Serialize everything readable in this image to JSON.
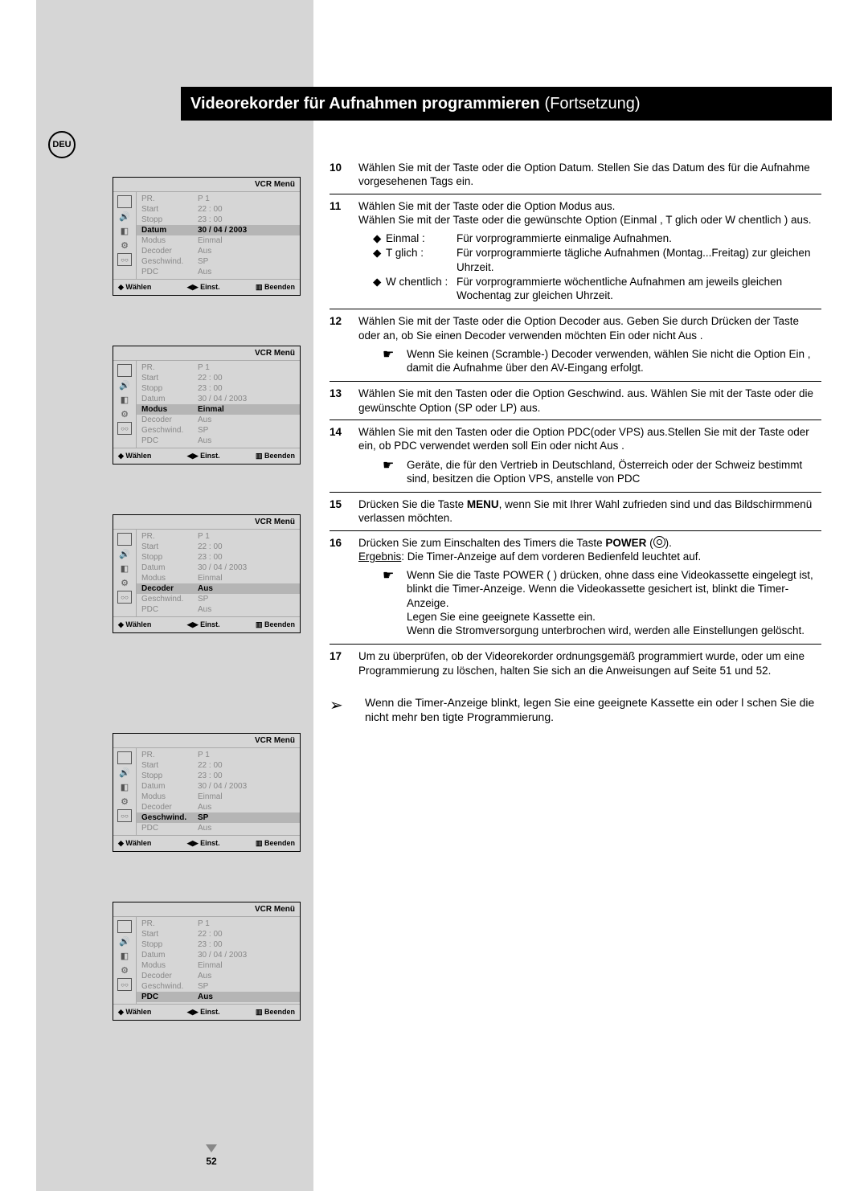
{
  "title_main": "Videorekorder für Aufnahmen programmieren",
  "title_cont": "(Fortsetzung)",
  "lang_badge": "DEU",
  "page_number": "52",
  "menu_header": "VCR Menü",
  "menu_footer": {
    "a": "◆ Wählen",
    "b": "◀▶ Einst.",
    "c": "▥ Beenden"
  },
  "menu_rows": [
    {
      "k": "PR.",
      "v": "P  1"
    },
    {
      "k": "Start",
      "v": "22 : 00"
    },
    {
      "k": "Stopp",
      "v": "23 : 00"
    },
    {
      "k": "Datum",
      "v": "30 / 04 / 2003"
    },
    {
      "k": "Modus",
      "v": "Einmal"
    },
    {
      "k": "Decoder",
      "v": "Aus"
    },
    {
      "k": "Geschwind.",
      "v": "SP"
    },
    {
      "k": "PDC",
      "v": "Aus"
    }
  ],
  "menu_highlights": [
    3,
    4,
    5,
    6,
    7
  ],
  "steps": {
    "s10": "Wählen Sie mit der Taste       oder       die Option Datum. Stellen Sie das Datum des für die Aufnahme vorgesehenen Tags ein.",
    "s11_a": "Wählen Sie mit der Taste       oder       die Option Modus aus.",
    "s11_b": "Wählen Sie mit der Taste       oder       die gewünschte Option (Einmal  , T glich       oder W chentlich      ) aus.",
    "s11_bullet1_lab": "Einmal :",
    "s11_bullet1": "Für vorprogrammierte einmalige Aufnahmen.",
    "s11_bullet2_lab": "T glich :",
    "s11_bullet2": "Für vorprogrammierte tägliche Aufnahmen (Montag...Freitag) zur gleichen Uhrzeit.",
    "s11_bullet3_lab": "W chentlich :",
    "s11_bullet3": "Für vorprogrammierte wöchentliche Aufnahmen am jeweils gleichen Wochentag zur gleichen Uhrzeit.",
    "s12_a": "Wählen Sie mit der Taste       oder       die Option Decoder   aus. Geben Sie durch Drücken der Taste       oder       an, ob Sie einen Decoder verwenden möchten Ein   oder nicht Aus .",
    "s12_note": "Wenn Sie keinen (Scramble-) Decoder verwenden, wählen Sie nicht die Option Ein , damit die Aufnahme über den AV-Eingang erfolgt.",
    "s13": "Wählen Sie mit den Tasten       oder       die Option Geschwind.   aus. Wählen Sie mit der Taste       oder       die gewünschte Option (SP oder LP) aus.",
    "s14_a": "Wählen Sie mit den Tasten       oder       die Option PDC(oder VPS) aus.Stellen Sie mit der Taste       oder       ein, ob PDC verwendet werden soll Ein   oder nicht Aus .",
    "s14_note": "Geräte, die für den Vertrieb in Deutschland, Österreich oder der Schweiz bestimmt sind, besitzen die Option VPS, anstelle von PDC",
    "s15_a": "Drücken Sie die Taste ",
    "s15_menu": "MENU",
    "s15_b": ", wenn Sie mit Ihrer Wahl zufrieden sind und das Bildschirmmenü verlassen möchten.",
    "s16_a": "Drücken Sie zum Einschalten des Timers die Taste ",
    "s16_power": "POWER",
    "s16_b": " (",
    "s16_c": ").",
    "s16_erg_lab": "Ergebnis",
    "s16_erg": ":   Die Timer-Anzeige auf dem vorderen Bedienfeld leuchtet auf.",
    "s16_note": "Wenn Sie die Taste POWER (   ) drücken, ohne dass eine Videokassette eingelegt ist, blinkt die Timer-Anzeige. Wenn die Videokassette gesichert ist, blinkt die Timer-Anzeige.\nLegen Sie eine geeignete Kassette ein.\nWenn die Stromversorgung unterbrochen wird, werden alle Einstellungen gelöscht.",
    "s17": "Um zu überprüfen, ob der Videorekorder ordnungsgemäß programmiert wurde, oder um eine Programmierung zu löschen, halten Sie sich an die Anweisungen auf Seite 51 und 52."
  },
  "final_note": "Wenn die Timer-Anzeige blinkt, legen Sie eine geeignete Kassette ein oder l schen Sie die nicht mehr ben tigte Programmierung.",
  "menu_positions": [
    220,
    430,
    640,
    912,
    1122
  ]
}
